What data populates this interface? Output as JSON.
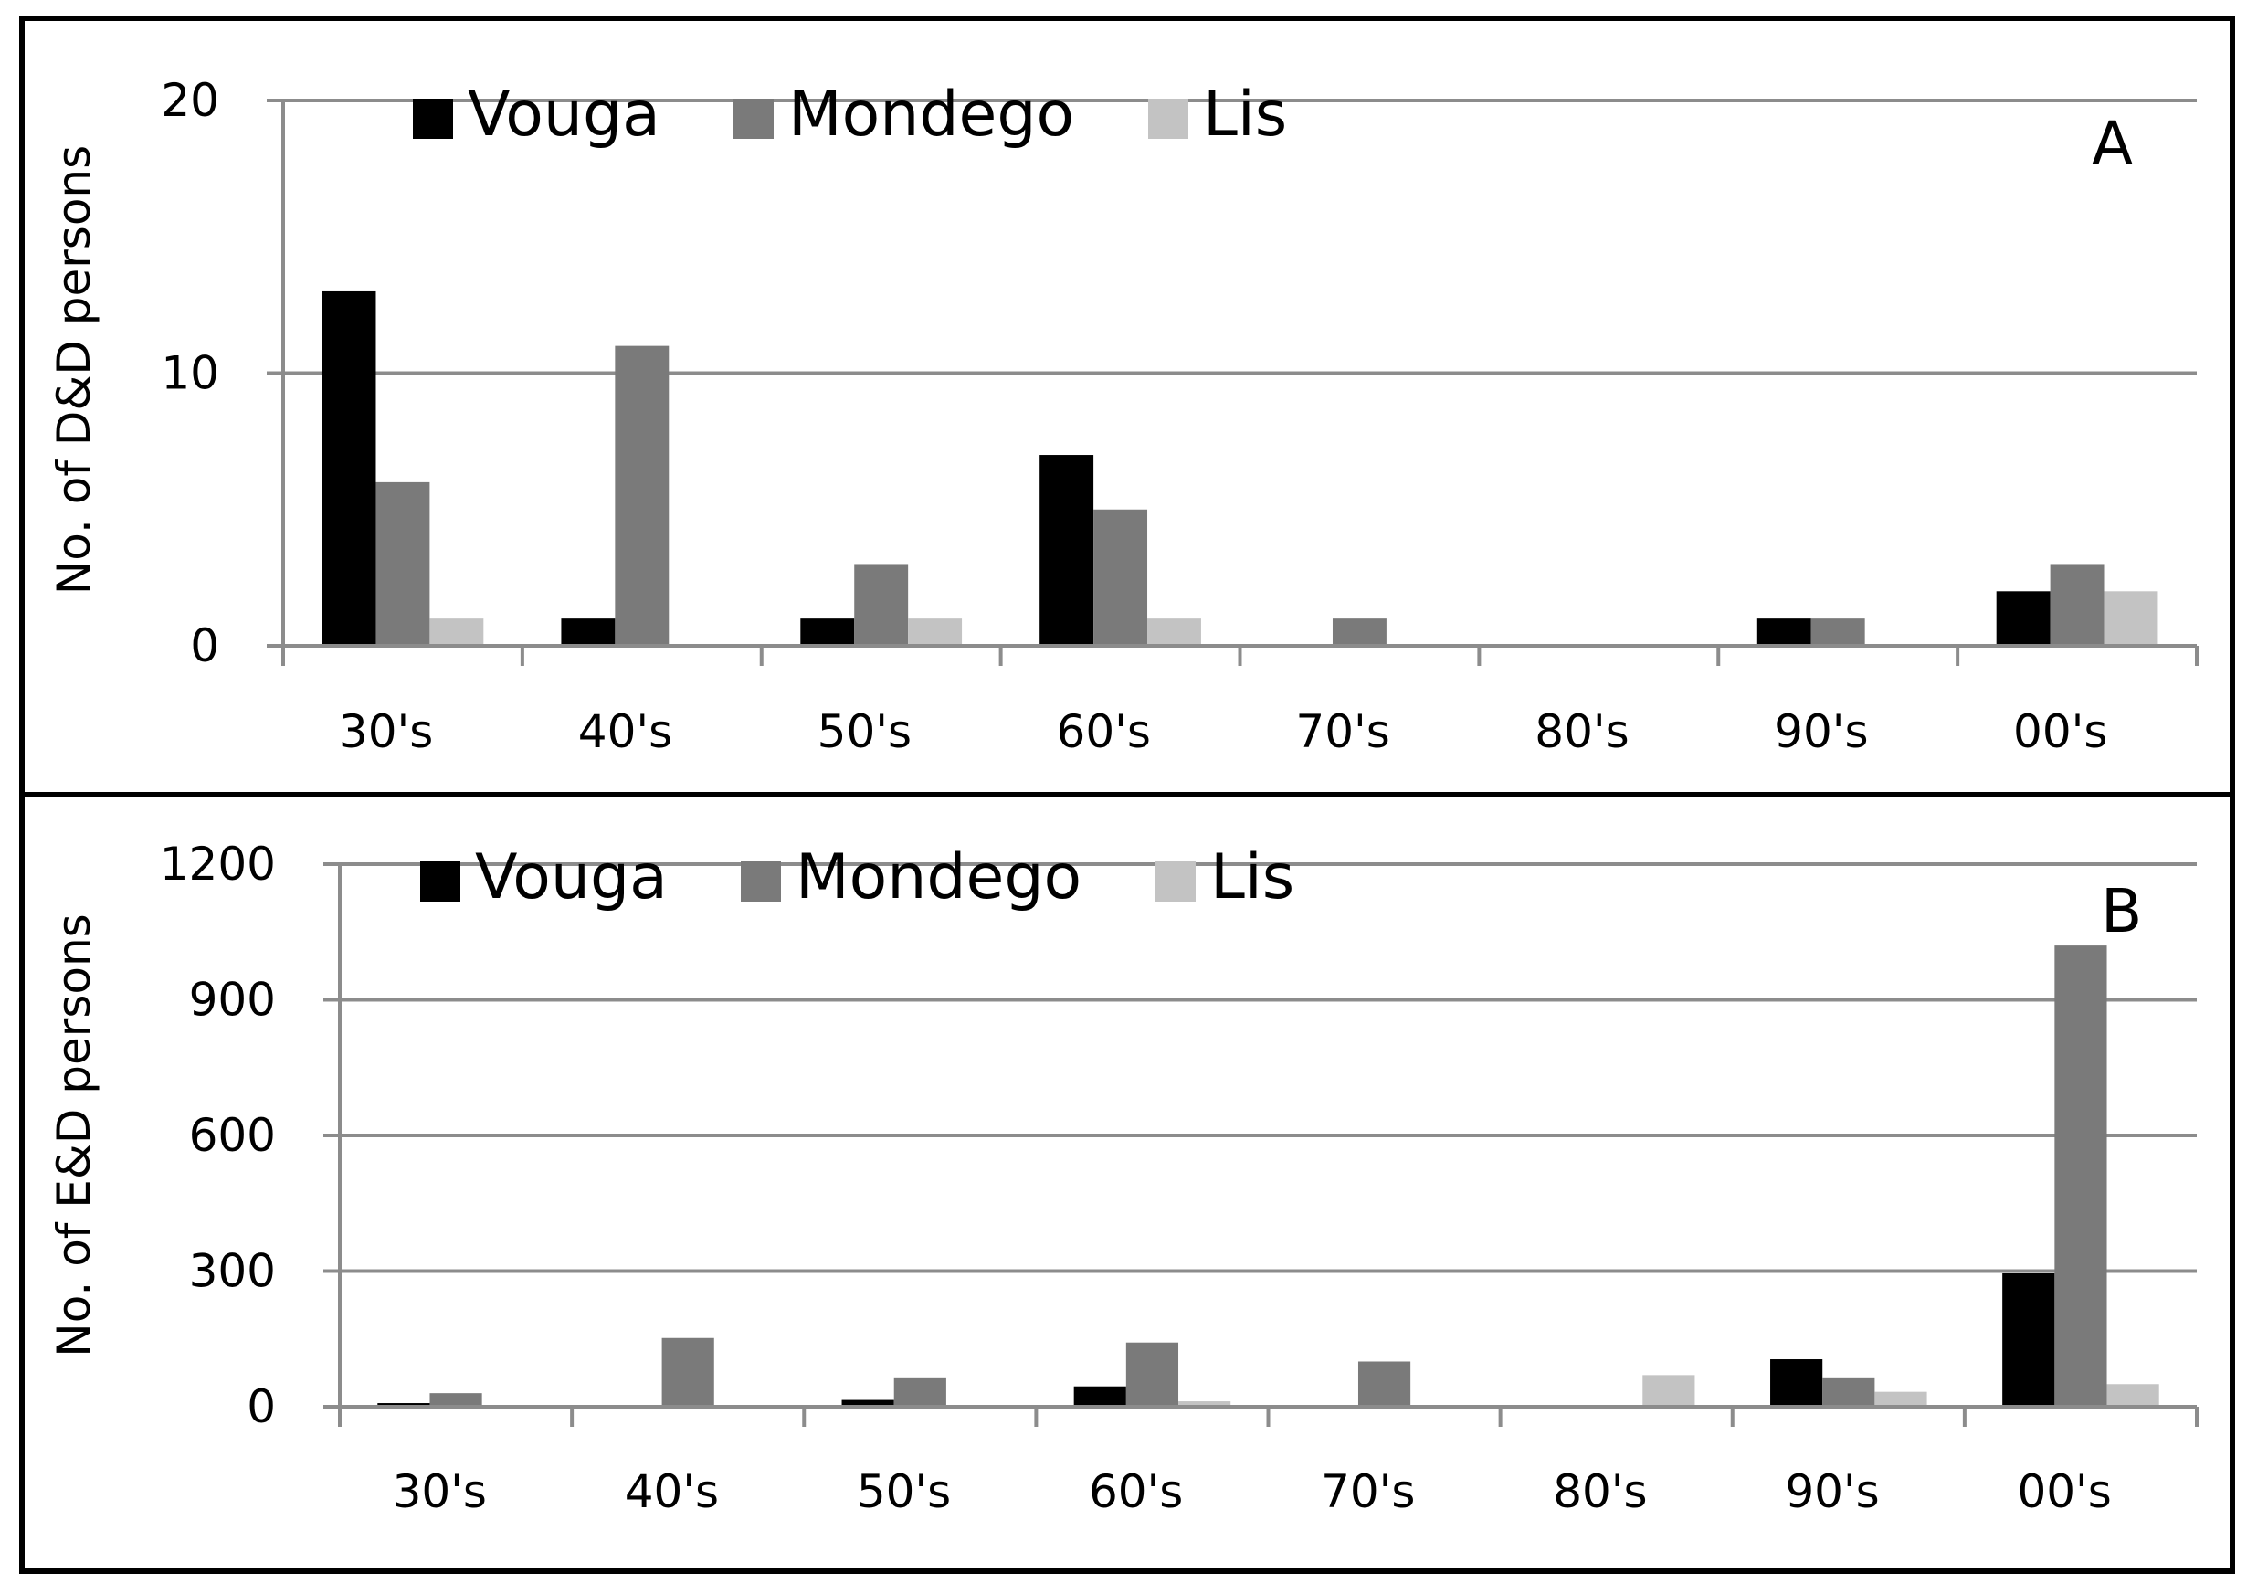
{
  "chart_data": [
    {
      "type": "bar",
      "panel_label": "A",
      "ylabel": "No. of D&D persons",
      "ylim": [
        0,
        20
      ],
      "yticks": [
        0,
        10,
        20
      ],
      "categories": [
        "30's",
        "40's",
        "50's",
        "60's",
        "70's",
        "80's",
        "90's",
        "00's"
      ],
      "legend_position": "top-left",
      "grid": true,
      "series": [
        {
          "name": "Vouga",
          "color": "#000000",
          "values": [
            13,
            1,
            1,
            7,
            0,
            0,
            1,
            2
          ]
        },
        {
          "name": "Mondego",
          "color": "#7a7a7a",
          "values": [
            6,
            11,
            3,
            5,
            1,
            0,
            1,
            3
          ]
        },
        {
          "name": "Lis",
          "color": "#c3c3c3",
          "values": [
            1,
            0,
            1,
            1,
            0,
            0,
            0,
            2
          ]
        }
      ]
    },
    {
      "type": "bar",
      "panel_label": "B",
      "ylabel": "No. of E&D persons",
      "ylim": [
        0,
        1200
      ],
      "yticks": [
        0,
        300,
        600,
        900,
        1200
      ],
      "categories": [
        "30's",
        "40's",
        "50's",
        "60's",
        "70's",
        "80's",
        "90's",
        "00's"
      ],
      "legend_position": "top-left",
      "grid": true,
      "series": [
        {
          "name": "Vouga",
          "color": "#000000",
          "values": [
            8,
            0,
            15,
            45,
            0,
            0,
            105,
            295
          ]
        },
        {
          "name": "Mondego",
          "color": "#7a7a7a",
          "values": [
            30,
            152,
            65,
            142,
            100,
            0,
            65,
            1020
          ]
        },
        {
          "name": "Lis",
          "color": "#c3c3c3",
          "values": [
            0,
            0,
            0,
            12,
            0,
            70,
            33,
            50
          ]
        }
      ]
    }
  ]
}
